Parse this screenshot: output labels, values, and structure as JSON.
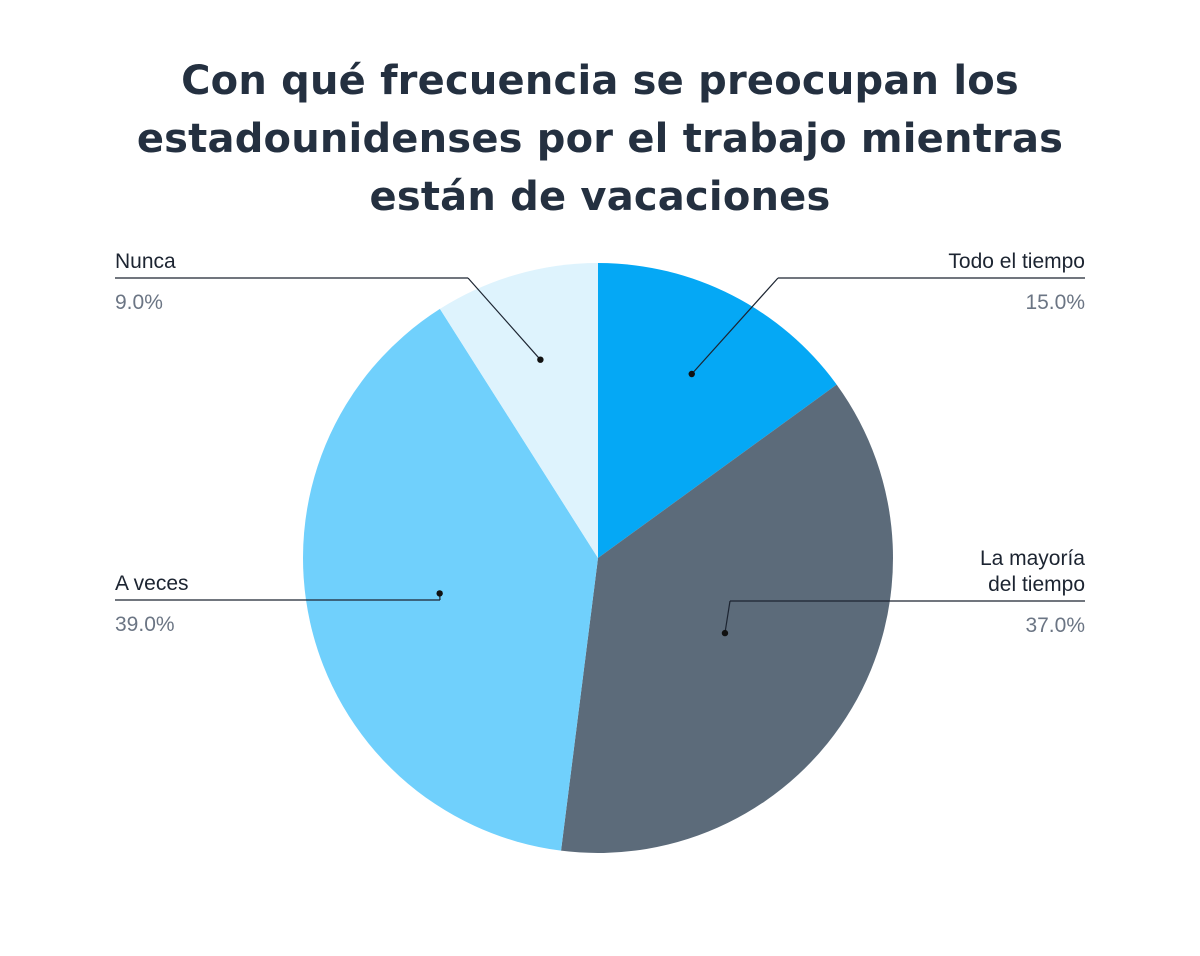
{
  "chart_data": {
    "type": "pie",
    "title_lines": [
      "Con qué frecuencia se preocupan los",
      "estadounidenses por el trabajo mientras",
      "están de vacaciones"
    ],
    "slices": [
      {
        "label_lines": [
          "Todo el tiempo"
        ],
        "value": 15.0,
        "display": "15.0%",
        "color": "#05a8f5"
      },
      {
        "label_lines": [
          "La mayoría",
          "del tiempo"
        ],
        "value": 37.0,
        "display": "37.0%",
        "color": "#5c6b7a"
      },
      {
        "label_lines": [
          "A veces"
        ],
        "value": 39.0,
        "display": "39.0%",
        "color": "#70d0fc"
      },
      {
        "label_lines": [
          "Nunca"
        ],
        "value": 9.0,
        "display": "9.0%",
        "color": "#def3fd"
      }
    ],
    "start_angle": "12 o'clock",
    "direction": "clockwise",
    "legend": "none"
  }
}
